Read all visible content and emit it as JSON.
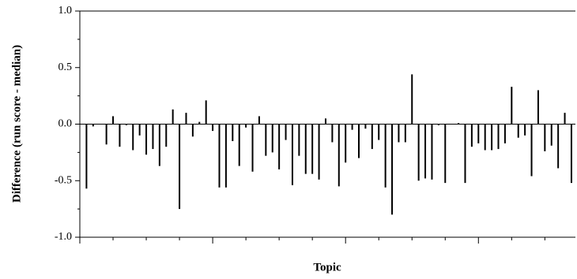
{
  "chart_data": {
    "type": "bar",
    "x_label": "Topic",
    "y_label": "Difference (run score - median)",
    "categories": [
      null,
      null,
      null,
      null,
      null,
      null,
      null,
      null,
      null,
      null,
      null,
      null,
      null,
      null,
      null,
      null,
      null,
      null,
      null,
      null,
      null,
      null,
      null,
      null,
      null,
      null,
      null,
      null,
      null,
      null,
      null,
      null,
      null,
      null,
      null,
      null,
      null,
      null,
      null,
      null,
      null,
      null,
      null,
      null,
      null,
      null,
      null,
      null,
      null,
      null,
      null,
      null,
      null,
      null,
      null,
      null,
      null,
      null,
      null,
      null,
      null,
      null,
      null,
      null,
      null,
      null,
      null,
      null,
      null,
      null,
      null,
      null,
      null,
      null
    ],
    "values": [
      -0.57,
      -0.02,
      0,
      -0.18,
      0.07,
      -0.2,
      -0.01,
      -0.23,
      -0.1,
      -0.27,
      -0.22,
      -0.37,
      -0.2,
      0.13,
      -0.75,
      0.1,
      -0.11,
      0.02,
      0.21,
      -0.06,
      -0.56,
      -0.56,
      -0.15,
      -0.37,
      -0.03,
      -0.42,
      0.07,
      -0.28,
      -0.25,
      -0.4,
      -0.14,
      -0.54,
      -0.28,
      -0.44,
      -0.44,
      -0.49,
      0.05,
      -0.16,
      -0.55,
      -0.34,
      -0.05,
      -0.3,
      -0.04,
      -0.22,
      -0.14,
      -0.56,
      -0.8,
      -0.16,
      -0.16,
      0.44,
      -0.5,
      -0.48,
      -0.49,
      -0.01,
      -0.52,
      0,
      0.01,
      -0.52,
      -0.2,
      -0.17,
      -0.23,
      -0.23,
      -0.22,
      -0.17,
      0.33,
      -0.12,
      -0.1,
      -0.46,
      0.3,
      -0.24,
      -0.19,
      -0.39,
      0.1,
      -0.52
    ],
    "color": "#000000",
    "ylim": [
      -1,
      1
    ],
    "yticks": [
      {
        "value": -1,
        "label": "-1.0"
      },
      {
        "value": -0.5,
        "label": "-0.5"
      },
      {
        "value": 0,
        "label": "0.0"
      },
      {
        "value": 0.5,
        "label": "0.5"
      },
      {
        "value": 1,
        "label": "1.0"
      }
    ],
    "grid": false
  }
}
